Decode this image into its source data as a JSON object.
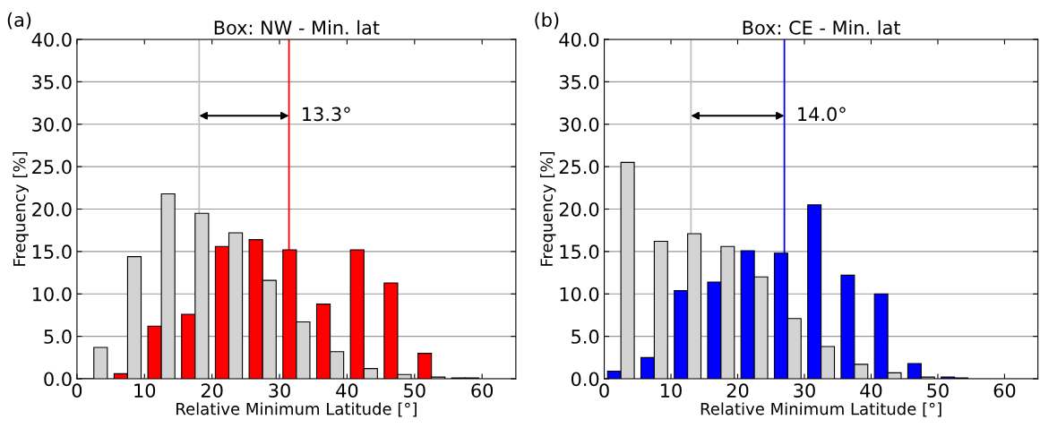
{
  "chart_data": [
    {
      "type": "bar",
      "title": "Box: NW - Min. lat",
      "xlabel": "Relative Minimum Latitude [°]",
      "ylabel": "Frequency [%]",
      "series": [
        {
          "color": "#ff0000",
          "x": [
            1.5,
            6.5,
            11.5,
            16.5,
            21.5,
            26.5,
            31.5,
            36.5,
            41.5,
            46.5,
            51.5,
            56.5
          ],
          "values": [
            0,
            0.6,
            6.2,
            7.6,
            15.6,
            16.4,
            15.2,
            8.8,
            15.2,
            11.3,
            3.0,
            0.1
          ]
        },
        {
          "color": "#d3d3d3",
          "x": [
            3.5,
            8.5,
            13.5,
            18.5,
            23.5,
            28.5,
            33.5,
            38.5,
            43.5,
            48.5,
            53.5,
            58.5
          ],
          "values": [
            3.7,
            14.4,
            21.8,
            19.5,
            17.2,
            11.6,
            6.7,
            3.2,
            1.2,
            0.5,
            0.2,
            0.1
          ]
        }
      ],
      "ref_lines": [
        {
          "axis": "x",
          "value": 18.1,
          "color": "#c0c0c0"
        },
        {
          "axis": "x",
          "value": 31.4,
          "color": "#ff0000"
        }
      ],
      "annotations": [
        "(a)",
        {
          "text": "13.3°",
          "x": 31.4,
          "y": 31
        }
      ],
      "xlim": [
        0,
        65
      ],
      "xticks": [
        0,
        10,
        20,
        30,
        40,
        50,
        60
      ],
      "ylim": [
        0,
        40
      ],
      "yticks": [
        {
          "value": 0,
          "label": "0.0"
        },
        {
          "value": 5,
          "label": "5.0"
        },
        {
          "value": 10,
          "label": "10.0"
        },
        {
          "value": 15,
          "label": "15.0"
        },
        {
          "value": 20,
          "label": "20.0"
        },
        {
          "value": 25,
          "label": "25.0"
        },
        {
          "value": 30,
          "label": "30.0"
        },
        {
          "value": 35,
          "label": "35.0"
        },
        {
          "value": 40,
          "label": "40.0"
        }
      ],
      "grid": "y"
    },
    {
      "type": "bar",
      "title": "Box: CE - Min. lat",
      "xlabel": "Relative Minimum Latitude [°]",
      "ylabel": "Frequency [%]",
      "series": [
        {
          "color": "#0000ff",
          "x": [
            1.5,
            6.5,
            11.5,
            16.5,
            21.5,
            26.5,
            31.5,
            36.5,
            41.5,
            46.5,
            51.5
          ],
          "values": [
            0.9,
            2.5,
            10.4,
            11.4,
            15.1,
            14.8,
            20.5,
            12.2,
            10.0,
            1.8,
            0.2
          ]
        },
        {
          "color": "#d3d3d3",
          "x": [
            3.5,
            8.5,
            13.5,
            18.5,
            23.5,
            28.5,
            33.5,
            38.5,
            43.5,
            48.5,
            53.5
          ],
          "values": [
            25.5,
            16.2,
            17.1,
            15.6,
            12.0,
            7.1,
            3.8,
            1.7,
            0.7,
            0.2,
            0.1
          ]
        }
      ],
      "ref_lines": [
        {
          "axis": "x",
          "value": 13.0,
          "color": "#c0c0c0"
        },
        {
          "axis": "x",
          "value": 27.0,
          "color": "#0000ff"
        }
      ],
      "annotations": [
        "(b)",
        {
          "text": "14.0°",
          "x": 27.0,
          "y": 31
        }
      ],
      "xlim": [
        0,
        65
      ],
      "xticks": [
        0,
        10,
        20,
        30,
        40,
        50,
        60
      ],
      "ylim": [
        0,
        40
      ],
      "yticks": [
        {
          "value": 0,
          "label": "0.0"
        },
        {
          "value": 5,
          "label": "5.0"
        },
        {
          "value": 10,
          "label": "10.0"
        },
        {
          "value": 15,
          "label": "15.0"
        },
        {
          "value": 20,
          "label": "20.0"
        },
        {
          "value": 25,
          "label": "25.0"
        },
        {
          "value": 30,
          "label": "30.0"
        },
        {
          "value": 35,
          "label": "35.0"
        },
        {
          "value": 40,
          "label": "40.0"
        }
      ],
      "grid": "y"
    }
  ]
}
